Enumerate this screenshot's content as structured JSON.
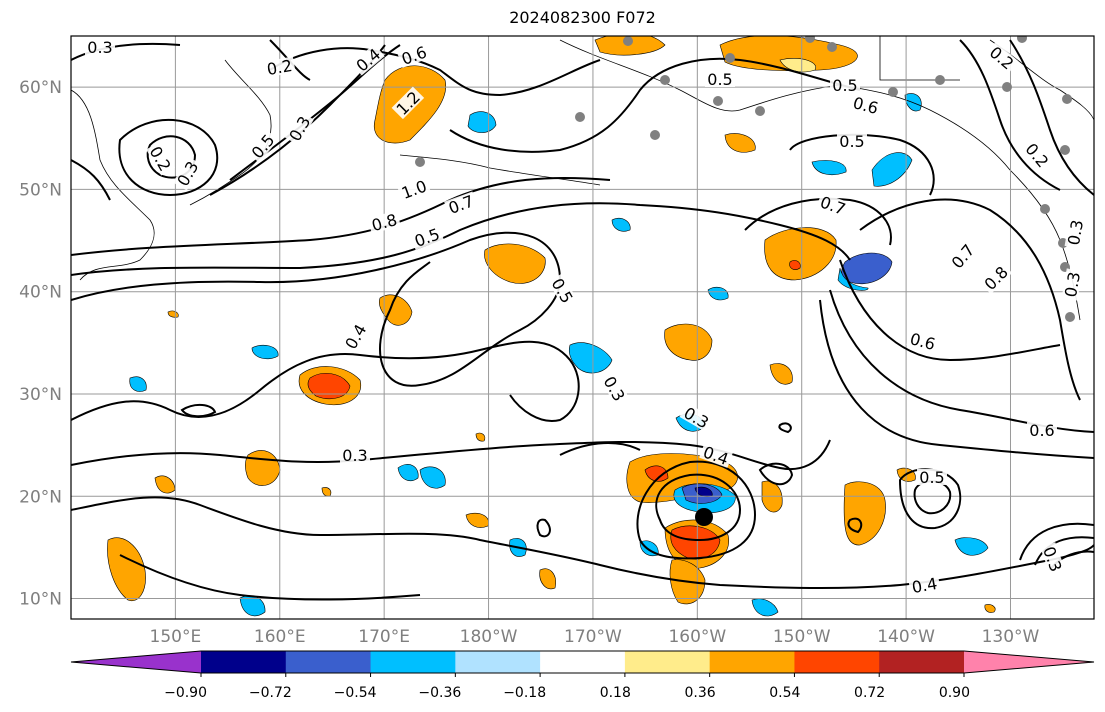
{
  "title": "2024082300 F072",
  "map": {
    "lat_ticks": [
      {
        "value": 10,
        "label": "10°N"
      },
      {
        "value": 20,
        "label": "20°N"
      },
      {
        "value": 30,
        "label": "30°N"
      },
      {
        "value": 40,
        "label": "40°N"
      },
      {
        "value": 50,
        "label": "50°N"
      },
      {
        "value": 60,
        "label": "60°N"
      }
    ],
    "lon_ticks": [
      {
        "value": 150,
        "label": "150°E"
      },
      {
        "value": 160,
        "label": "160°E"
      },
      {
        "value": 170,
        "label": "170°E"
      },
      {
        "value": 180,
        "label": "180°W"
      },
      {
        "value": 190,
        "label": "170°W"
      },
      {
        "value": 200,
        "label": "160°W"
      },
      {
        "value": 210,
        "label": "150°W"
      },
      {
        "value": 220,
        "label": "140°W"
      },
      {
        "value": 230,
        "label": "130°W"
      }
    ],
    "lon_range": [
      140,
      238
    ],
    "lat_range": [
      8,
      65
    ],
    "grid": true,
    "contour_labels": [
      "0.3",
      "0.2",
      "0.4",
      "0.6",
      "0.3",
      "1.2",
      "0.5",
      "0.2",
      "0.3",
      "1.0",
      "0.8",
      "0.7",
      "0.5",
      "0.5",
      "0.4",
      "0.3",
      "0.3",
      "0.4",
      "0.3",
      "0.6",
      "0.5",
      "0.6",
      "0.5",
      "0.7",
      "0.7",
      "0.8",
      "0.3",
      "0.2",
      "0.6",
      "0.4",
      "0.5",
      "0.2",
      "0.5",
      "0.3",
      "0.3"
    ]
  },
  "colorbar": {
    "colors": [
      "#9932cc",
      "#00008b",
      "#3a5fcd",
      "#00bfff",
      "#b0e2ff",
      "#ffffff",
      "#ffec8b",
      "#ffa500",
      "#ff4500",
      "#b22222",
      "#ff82ab"
    ],
    "tick_labels": [
      "−0.90",
      "−0.72",
      "−0.54",
      "−0.36",
      "−0.18",
      "0.18",
      "0.36",
      "0.54",
      "0.72",
      "0.90"
    ]
  }
}
